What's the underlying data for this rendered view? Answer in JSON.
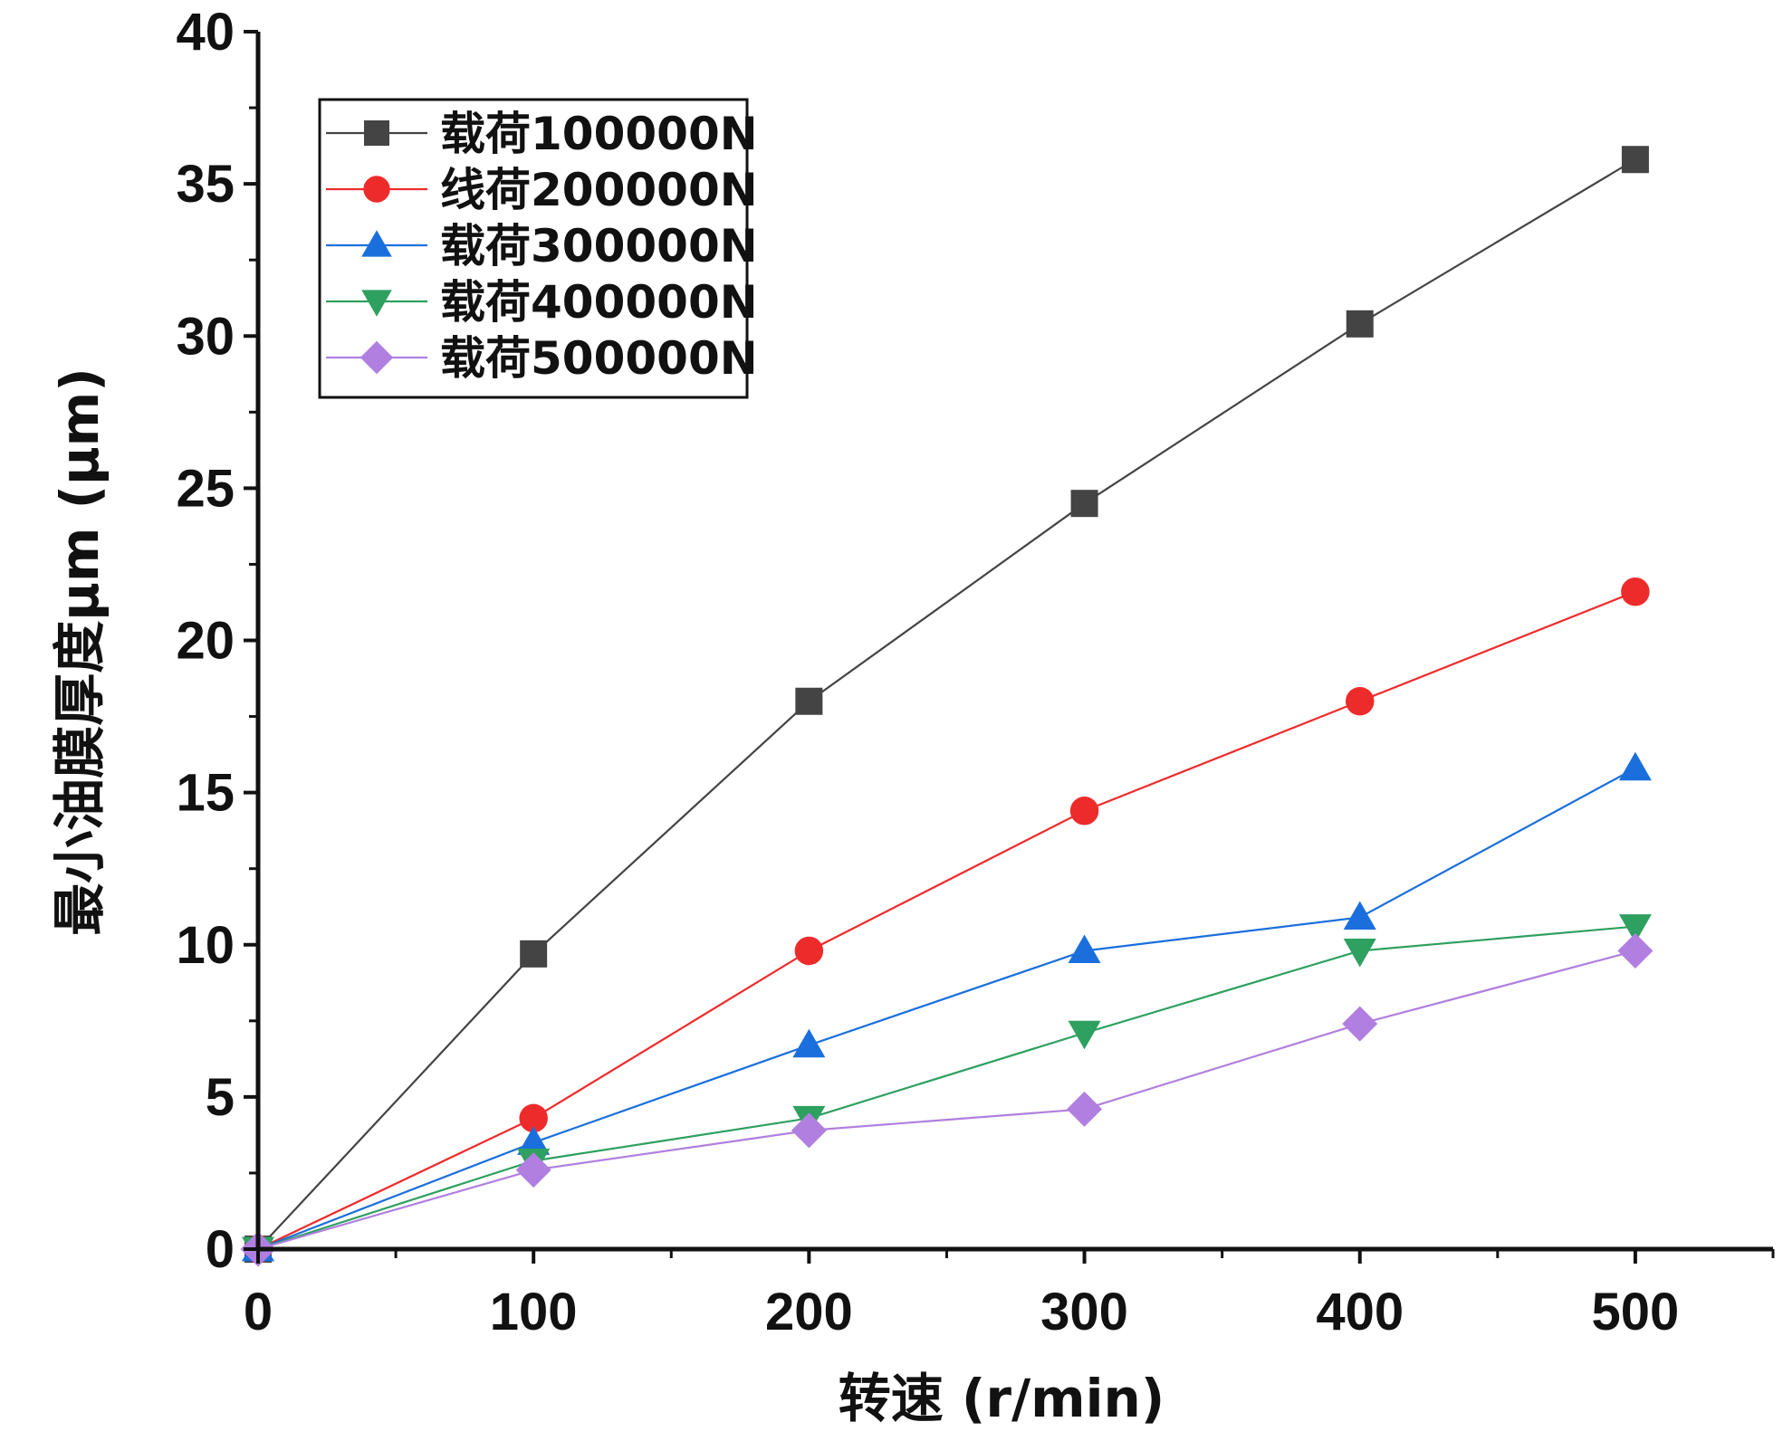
{
  "chart_data": {
    "type": "line",
    "xlabel": "转速 (r/min)",
    "ylabel": "最小油膜厚度μm (μm)",
    "xlim": [
      0,
      550
    ],
    "ylim": [
      0,
      40
    ],
    "x_ticks": [
      0,
      100,
      200,
      300,
      400,
      500
    ],
    "x_tick_labels": [
      "0",
      "100",
      "200",
      "300",
      "400",
      "500"
    ],
    "y_ticks": [
      0,
      5,
      10,
      15,
      20,
      25,
      30,
      35,
      40
    ],
    "y_tick_labels": [
      "0",
      "5",
      "10",
      "15",
      "20",
      "25",
      "30",
      "35",
      "40"
    ],
    "grid": false,
    "legend_position": "top-left",
    "x": [
      0,
      100,
      200,
      300,
      400,
      500
    ],
    "series": [
      {
        "name": "载荷100000N",
        "color": "#444444",
        "marker": "square",
        "values": [
          0,
          9.7,
          18.0,
          24.5,
          30.4,
          35.8
        ]
      },
      {
        "name": "线荷200000N",
        "color": "#ee2b2b",
        "marker": "circle",
        "values": [
          0,
          4.3,
          9.8,
          14.4,
          18.0,
          21.6
        ]
      },
      {
        "name": "载荷300000N",
        "color": "#1a6fdc",
        "marker": "triangle-up",
        "values": [
          0,
          3.5,
          6.7,
          9.8,
          10.9,
          15.8
        ]
      },
      {
        "name": "载荷400000N",
        "color": "#2ea05f",
        "marker": "triangle-down",
        "values": [
          0,
          2.9,
          4.3,
          7.1,
          9.8,
          10.6
        ]
      },
      {
        "name": "载荷500000N",
        "color": "#b07fe0",
        "marker": "diamond",
        "values": [
          0,
          2.6,
          3.9,
          4.6,
          7.4,
          9.8
        ]
      }
    ]
  }
}
